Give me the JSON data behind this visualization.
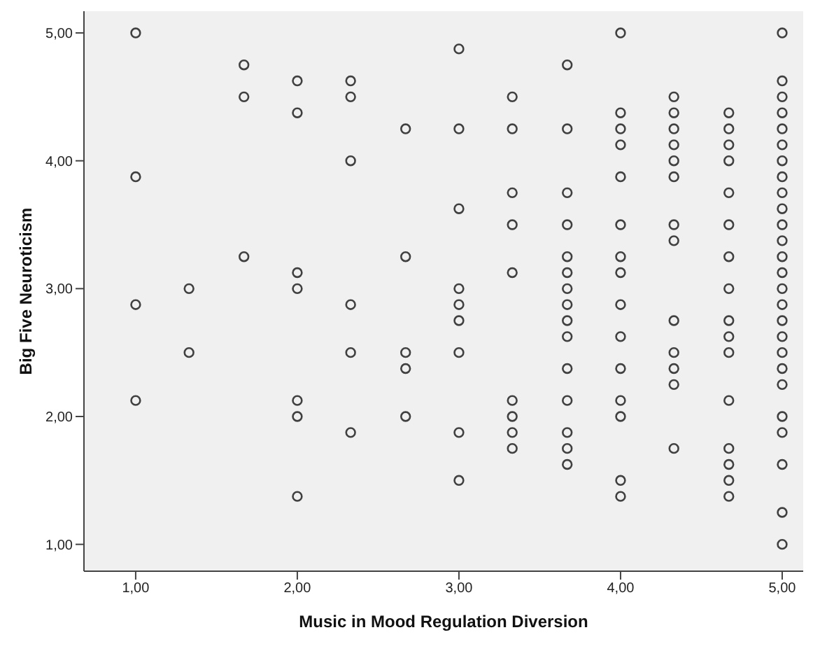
{
  "chart_data": {
    "type": "scatter",
    "xlabel": "Music in Mood Regulation Diversion",
    "ylabel": "Big Five Neuroticism",
    "xlim": [
      0.68,
      5.13
    ],
    "ylim": [
      0.79,
      5.17
    ],
    "xticks": [
      {
        "value": 1,
        "label": "1,00"
      },
      {
        "value": 2,
        "label": "2,00"
      },
      {
        "value": 3,
        "label": "3,00"
      },
      {
        "value": 4,
        "label": "4,00"
      },
      {
        "value": 5,
        "label": "5,00"
      }
    ],
    "yticks": [
      {
        "value": 1,
        "label": "1,00"
      },
      {
        "value": 2,
        "label": "2,00"
      },
      {
        "value": 3,
        "label": "3,00"
      },
      {
        "value": 4,
        "label": "4,00"
      },
      {
        "value": 5,
        "label": "5,00"
      }
    ],
    "grid": false,
    "legend": false,
    "marker": "circle",
    "series": [
      {
        "color": "#404040",
        "x": [
          1,
          1,
          1,
          1,
          1.33,
          1.33,
          1.67,
          1.67,
          1.67,
          2,
          2,
          2,
          2,
          2,
          2,
          2,
          2.33,
          2.33,
          2.33,
          2.33,
          2.33,
          2.33,
          2.67,
          2.67,
          2.67,
          2.67,
          2.67,
          3,
          3,
          3,
          3,
          3,
          3,
          3,
          3,
          3,
          3.33,
          3.33,
          3.33,
          3.33,
          3.33,
          3.33,
          3.33,
          3.33,
          3.33,
          3.67,
          3.67,
          3.67,
          3.67,
          3.67,
          3.67,
          3.67,
          3.67,
          3.67,
          3.67,
          3.67,
          3.67,
          3.67,
          3.67,
          3.67,
          4,
          4,
          4,
          4,
          4,
          4,
          4,
          4,
          4,
          4,
          4,
          4,
          4,
          4,
          4,
          4.33,
          4.33,
          4.33,
          4.33,
          4.33,
          4.33,
          4.33,
          4.33,
          4.33,
          4.33,
          4.33,
          4.33,
          4.33,
          4.67,
          4.67,
          4.67,
          4.67,
          4.67,
          4.67,
          4.67,
          4.67,
          4.67,
          4.67,
          4.67,
          4.67,
          4.67,
          4.67,
          4.67,
          4.67,
          5,
          5,
          5,
          5,
          5,
          5,
          5,
          5,
          5,
          5,
          5,
          5,
          5,
          5,
          5,
          5,
          5,
          5,
          5,
          5,
          5,
          5,
          5,
          5,
          5,
          5
        ],
        "values": [
          5,
          3.875,
          2.875,
          2.125,
          3,
          2.5,
          4.75,
          4.5,
          3.25,
          4.625,
          4.375,
          3.125,
          3,
          2.125,
          2,
          1.375,
          4.625,
          4.5,
          4,
          2.875,
          2.5,
          1.875,
          4.25,
          3.25,
          2.5,
          2.375,
          2,
          4.875,
          4.25,
          3.625,
          3,
          2.875,
          2.75,
          2.5,
          1.875,
          1.5,
          4.5,
          4.25,
          3.75,
          3.5,
          3.125,
          2.125,
          2,
          1.875,
          1.75,
          4.75,
          4.25,
          3.75,
          3.5,
          3.25,
          3.125,
          3,
          2.875,
          2.75,
          2.625,
          2.375,
          2.125,
          1.875,
          1.75,
          1.625,
          5,
          4.375,
          4.25,
          4.125,
          3.875,
          3.5,
          3.25,
          3.125,
          2.875,
          2.625,
          2.375,
          2.125,
          2,
          1.5,
          1.375,
          4.5,
          4.375,
          4.25,
          4.125,
          4,
          3.875,
          3.5,
          3.375,
          2.75,
          2.5,
          2.375,
          2.25,
          1.75,
          4.375,
          4.25,
          4.125,
          4,
          3.75,
          3.5,
          3.25,
          3,
          2.75,
          2.625,
          2.5,
          2.125,
          1.75,
          1.625,
          1.5,
          1.375,
          5,
          4.625,
          4.5,
          4.375,
          4.25,
          4.125,
          4,
          3.875,
          3.75,
          3.625,
          3.5,
          3.375,
          3.25,
          3.125,
          3,
          2.875,
          2.75,
          2.625,
          2.5,
          2.375,
          2.25,
          2,
          1.875,
          1.625,
          1.25,
          1
        ]
      }
    ]
  }
}
